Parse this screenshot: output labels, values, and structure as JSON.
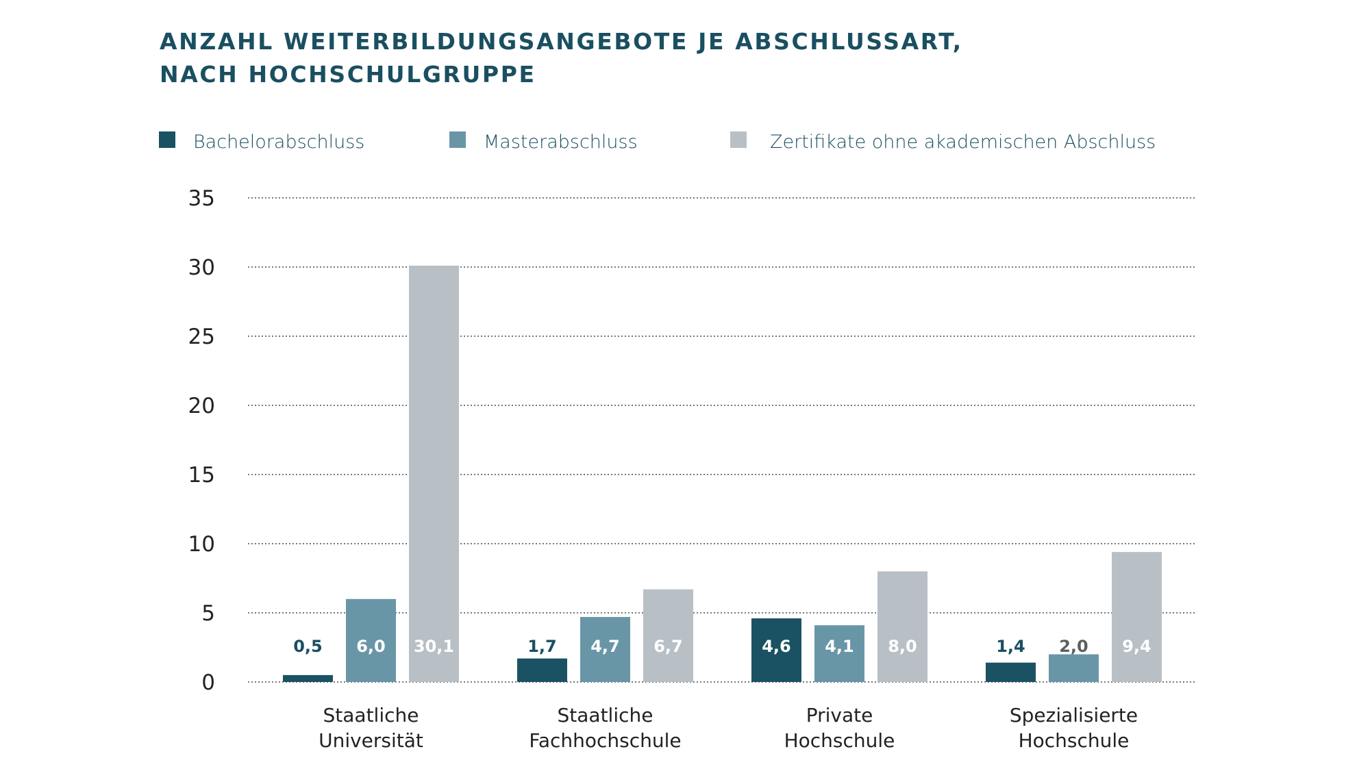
{
  "chart_data": {
    "type": "bar",
    "title": [
      "ANZAHL WEITERBILDUNGSANGEBOTE JE ABSCHLUSSART,",
      "NACH HOCHSCHULGRUPPE"
    ],
    "xlabel": "",
    "ylabel": "",
    "ylim": [
      0,
      35
    ],
    "yticks": [
      0,
      5,
      10,
      15,
      20,
      25,
      30,
      35
    ],
    "ytick_labels": [
      "0",
      "5",
      "10",
      "15",
      "20",
      "25",
      "30",
      "35"
    ],
    "grid": true,
    "legend_position": "top-left",
    "categories": [
      [
        "Staatliche",
        "Universität"
      ],
      [
        "Staatliche",
        "Fachhochschule"
      ],
      [
        "Private",
        "Hochschule"
      ],
      [
        "Spezialisierte",
        "Hochschule"
      ]
    ],
    "series": [
      {
        "name": "Bachelorabschluss",
        "color": "#1a5263",
        "values": [
          0.5,
          1.7,
          4.6,
          1.4
        ],
        "labels": [
          "0,5",
          "1,7",
          "4,6",
          "1,4"
        ],
        "label_colors": [
          "#1a4f61",
          "#1a4f61",
          "#ffffff",
          "#1a4f61"
        ]
      },
      {
        "name": "Masterabschluss",
        "color": "#6996a7",
        "values": [
          6.0,
          4.7,
          4.1,
          2.0
        ],
        "labels": [
          "6,0",
          "4,7",
          "4,1",
          "2,0"
        ],
        "label_colors": [
          "#ffffff",
          "#ffffff",
          "#ffffff",
          "#5a5f63"
        ]
      },
      {
        "name": "Zertifikate ohne akademischen Abschluss",
        "color": "#b8c0c6",
        "values": [
          30.1,
          6.7,
          8.0,
          9.4
        ],
        "labels": [
          "30,1",
          "6,7",
          "8,0",
          "9,4"
        ],
        "label_colors": [
          "#ffffff",
          "#ffffff",
          "#ffffff",
          "#ffffff"
        ]
      }
    ]
  }
}
